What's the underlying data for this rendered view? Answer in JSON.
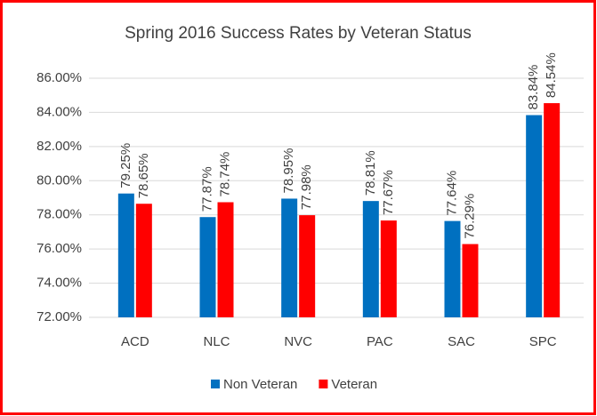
{
  "chart_data": {
    "type": "bar",
    "title": "Spring 2016 Success Rates by Veteran Status",
    "categories": [
      "ACD",
      "NLC",
      "NVC",
      "PAC",
      "SAC",
      "SPC"
    ],
    "series": [
      {
        "name": "Non Veteran",
        "color": "#0070c0",
        "values": [
          79.25,
          77.87,
          78.95,
          78.81,
          77.64,
          83.84
        ],
        "value_labels": [
          "79.25%",
          "77.87%",
          "78.95%",
          "78.81%",
          "77.64%",
          "83.84%"
        ]
      },
      {
        "name": "Veteran",
        "color": "#ff0000",
        "values": [
          78.65,
          78.74,
          77.98,
          77.67,
          76.29,
          84.54
        ],
        "value_labels": [
          "78.65%",
          "78.74%",
          "77.98%",
          "77.67%",
          "76.29%",
          "84.54%"
        ]
      }
    ],
    "ylim": [
      72,
      86
    ],
    "yticks": [
      {
        "value": 72,
        "label": "72.00%"
      },
      {
        "value": 74,
        "label": "74.00%"
      },
      {
        "value": 76,
        "label": "76.00%"
      },
      {
        "value": 78,
        "label": "78.00%"
      },
      {
        "value": 80,
        "label": "80.00%"
      },
      {
        "value": 82,
        "label": "82.00%"
      },
      {
        "value": 84,
        "label": "84.00%"
      },
      {
        "value": 86,
        "label": "86.00%"
      }
    ],
    "grid": true,
    "legend": "bottom"
  }
}
